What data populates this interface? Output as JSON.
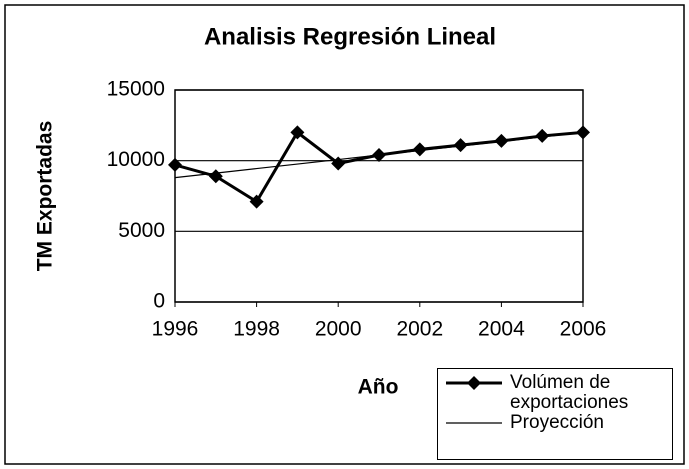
{
  "chart_data": {
    "type": "line",
    "title": "Analisis Regresión Lineal",
    "x_label": "Año",
    "y_label": "TM  Exportadas",
    "x": [
      1996,
      1997,
      1998,
      1999,
      2000,
      2001,
      2002,
      2003,
      2004,
      2005,
      2006
    ],
    "series": [
      {
        "name": "Volúmen de exportaciones",
        "color": "#000000",
        "marker": "diamond",
        "values": [
          9700,
          8900,
          7100,
          12000,
          9800,
          10400,
          10800,
          11100,
          11400,
          11750,
          12000
        ]
      },
      {
        "name": "Proyección",
        "color": "#000000",
        "values": [
          8800,
          9120,
          9440,
          9760,
          10080,
          10400,
          10720,
          11040,
          11360,
          11680,
          12000
        ]
      }
    ],
    "xlim": [
      1996,
      2006
    ],
    "xticks": [
      1996,
      1998,
      2000,
      2002,
      2004,
      2006
    ],
    "ylim": [
      0,
      15000
    ],
    "yticks": [
      0,
      5000,
      10000,
      15000
    ],
    "grid": true
  }
}
